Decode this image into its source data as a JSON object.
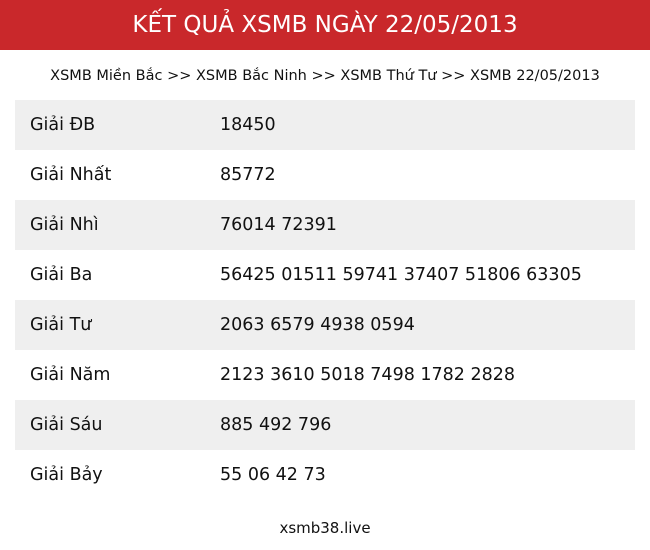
{
  "header": {
    "title": "KẾT QUẢ XSMB NGÀY 22/05/2013",
    "color": "#c9282b"
  },
  "breadcrumb": [
    {
      "label": "XSMB Miền Bắc"
    },
    {
      "label": "XSMB Bắc Ninh"
    },
    {
      "label": "XSMB Thứ Tư"
    },
    {
      "label": "XSMB 22/05/2013"
    }
  ],
  "separator": ">>",
  "results": [
    {
      "label": "Giải ĐB",
      "value": "18450"
    },
    {
      "label": "Giải Nhất",
      "value": "85772"
    },
    {
      "label": "Giải Nhì",
      "value": "76014 72391"
    },
    {
      "label": "Giải Ba",
      "value": "56425 01511 59741 37407 51806 63305"
    },
    {
      "label": "Giải Tư",
      "value": "2063 6579 4938 0594"
    },
    {
      "label": "Giải Năm",
      "value": "2123 3610 5018 7498 1782 2828"
    },
    {
      "label": "Giải Sáu",
      "value": "885 492 796"
    },
    {
      "label": "Giải Bảy",
      "value": "55 06 42 73"
    }
  ],
  "footer": {
    "site": "xsmb38.live"
  }
}
